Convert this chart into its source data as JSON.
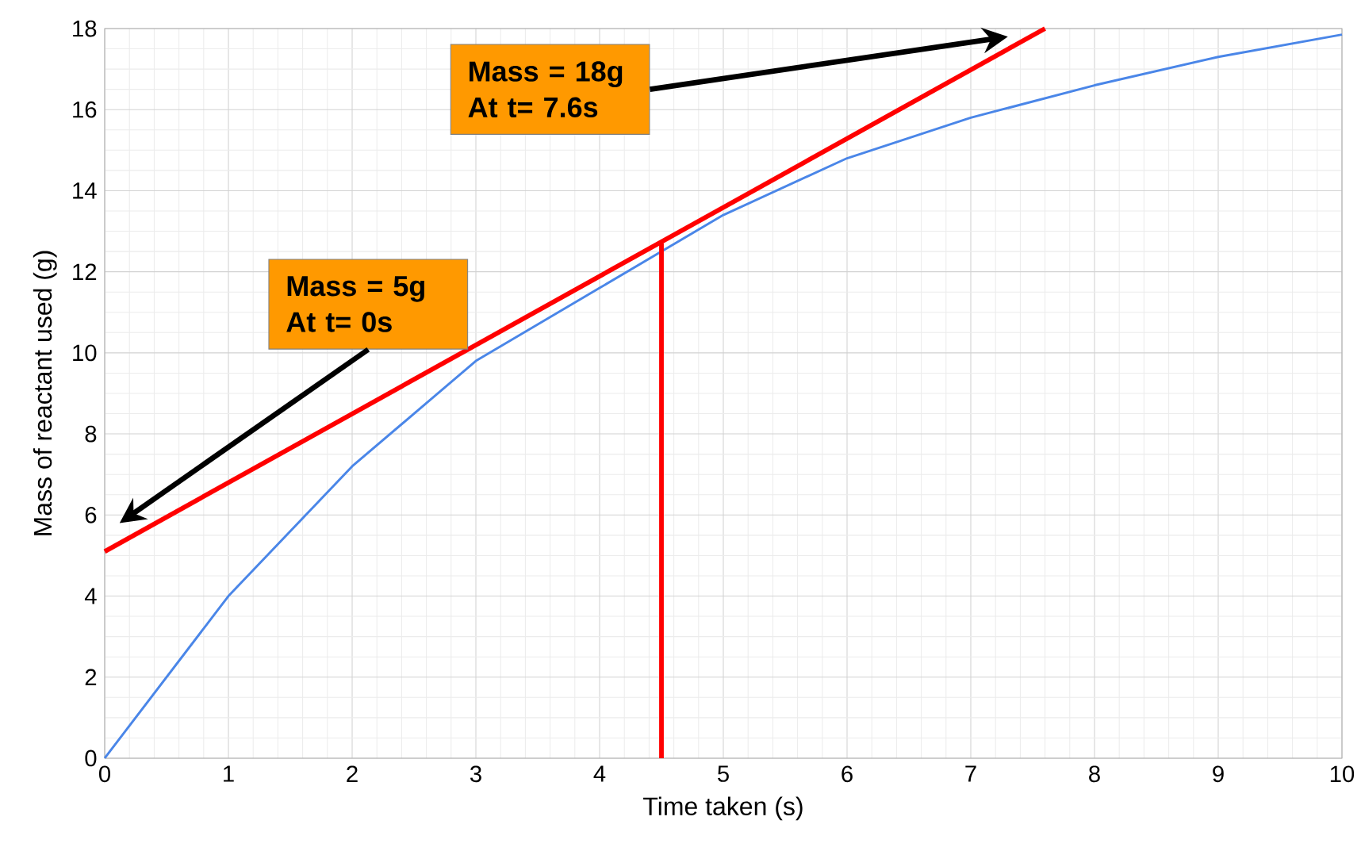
{
  "chart_data": {
    "type": "line",
    "xlabel": "Time taken (s)",
    "ylabel": "Mass of reactant used (g)",
    "xlim": [
      0,
      10
    ],
    "ylim": [
      0,
      18
    ],
    "xticks": [
      0,
      1,
      2,
      3,
      4,
      5,
      6,
      7,
      8,
      9,
      10
    ],
    "yticks": [
      0,
      2,
      4,
      6,
      8,
      10,
      12,
      14,
      16,
      18
    ],
    "grid": true,
    "marker": "none",
    "series": [
      {
        "color": "#4a86e8",
        "x": [
          0,
          1,
          2,
          3,
          4,
          5,
          6,
          7,
          8,
          9,
          10
        ],
        "values": [
          0,
          4.0,
          7.2,
          9.8,
          11.6,
          13.4,
          14.8,
          15.8,
          16.6,
          17.3,
          17.85
        ]
      },
      {
        "color": "#ff0000",
        "x": [
          0,
          7.6
        ],
        "values": [
          5.1,
          18
        ]
      },
      {
        "color": "#ff0000",
        "x": [
          4.5,
          4.5
        ],
        "values": [
          0,
          12.7
        ]
      }
    ],
    "annotations": [
      "Mass = 18g At t= 7.6s",
      "Mass = 5g At t= 0s"
    ]
  }
}
